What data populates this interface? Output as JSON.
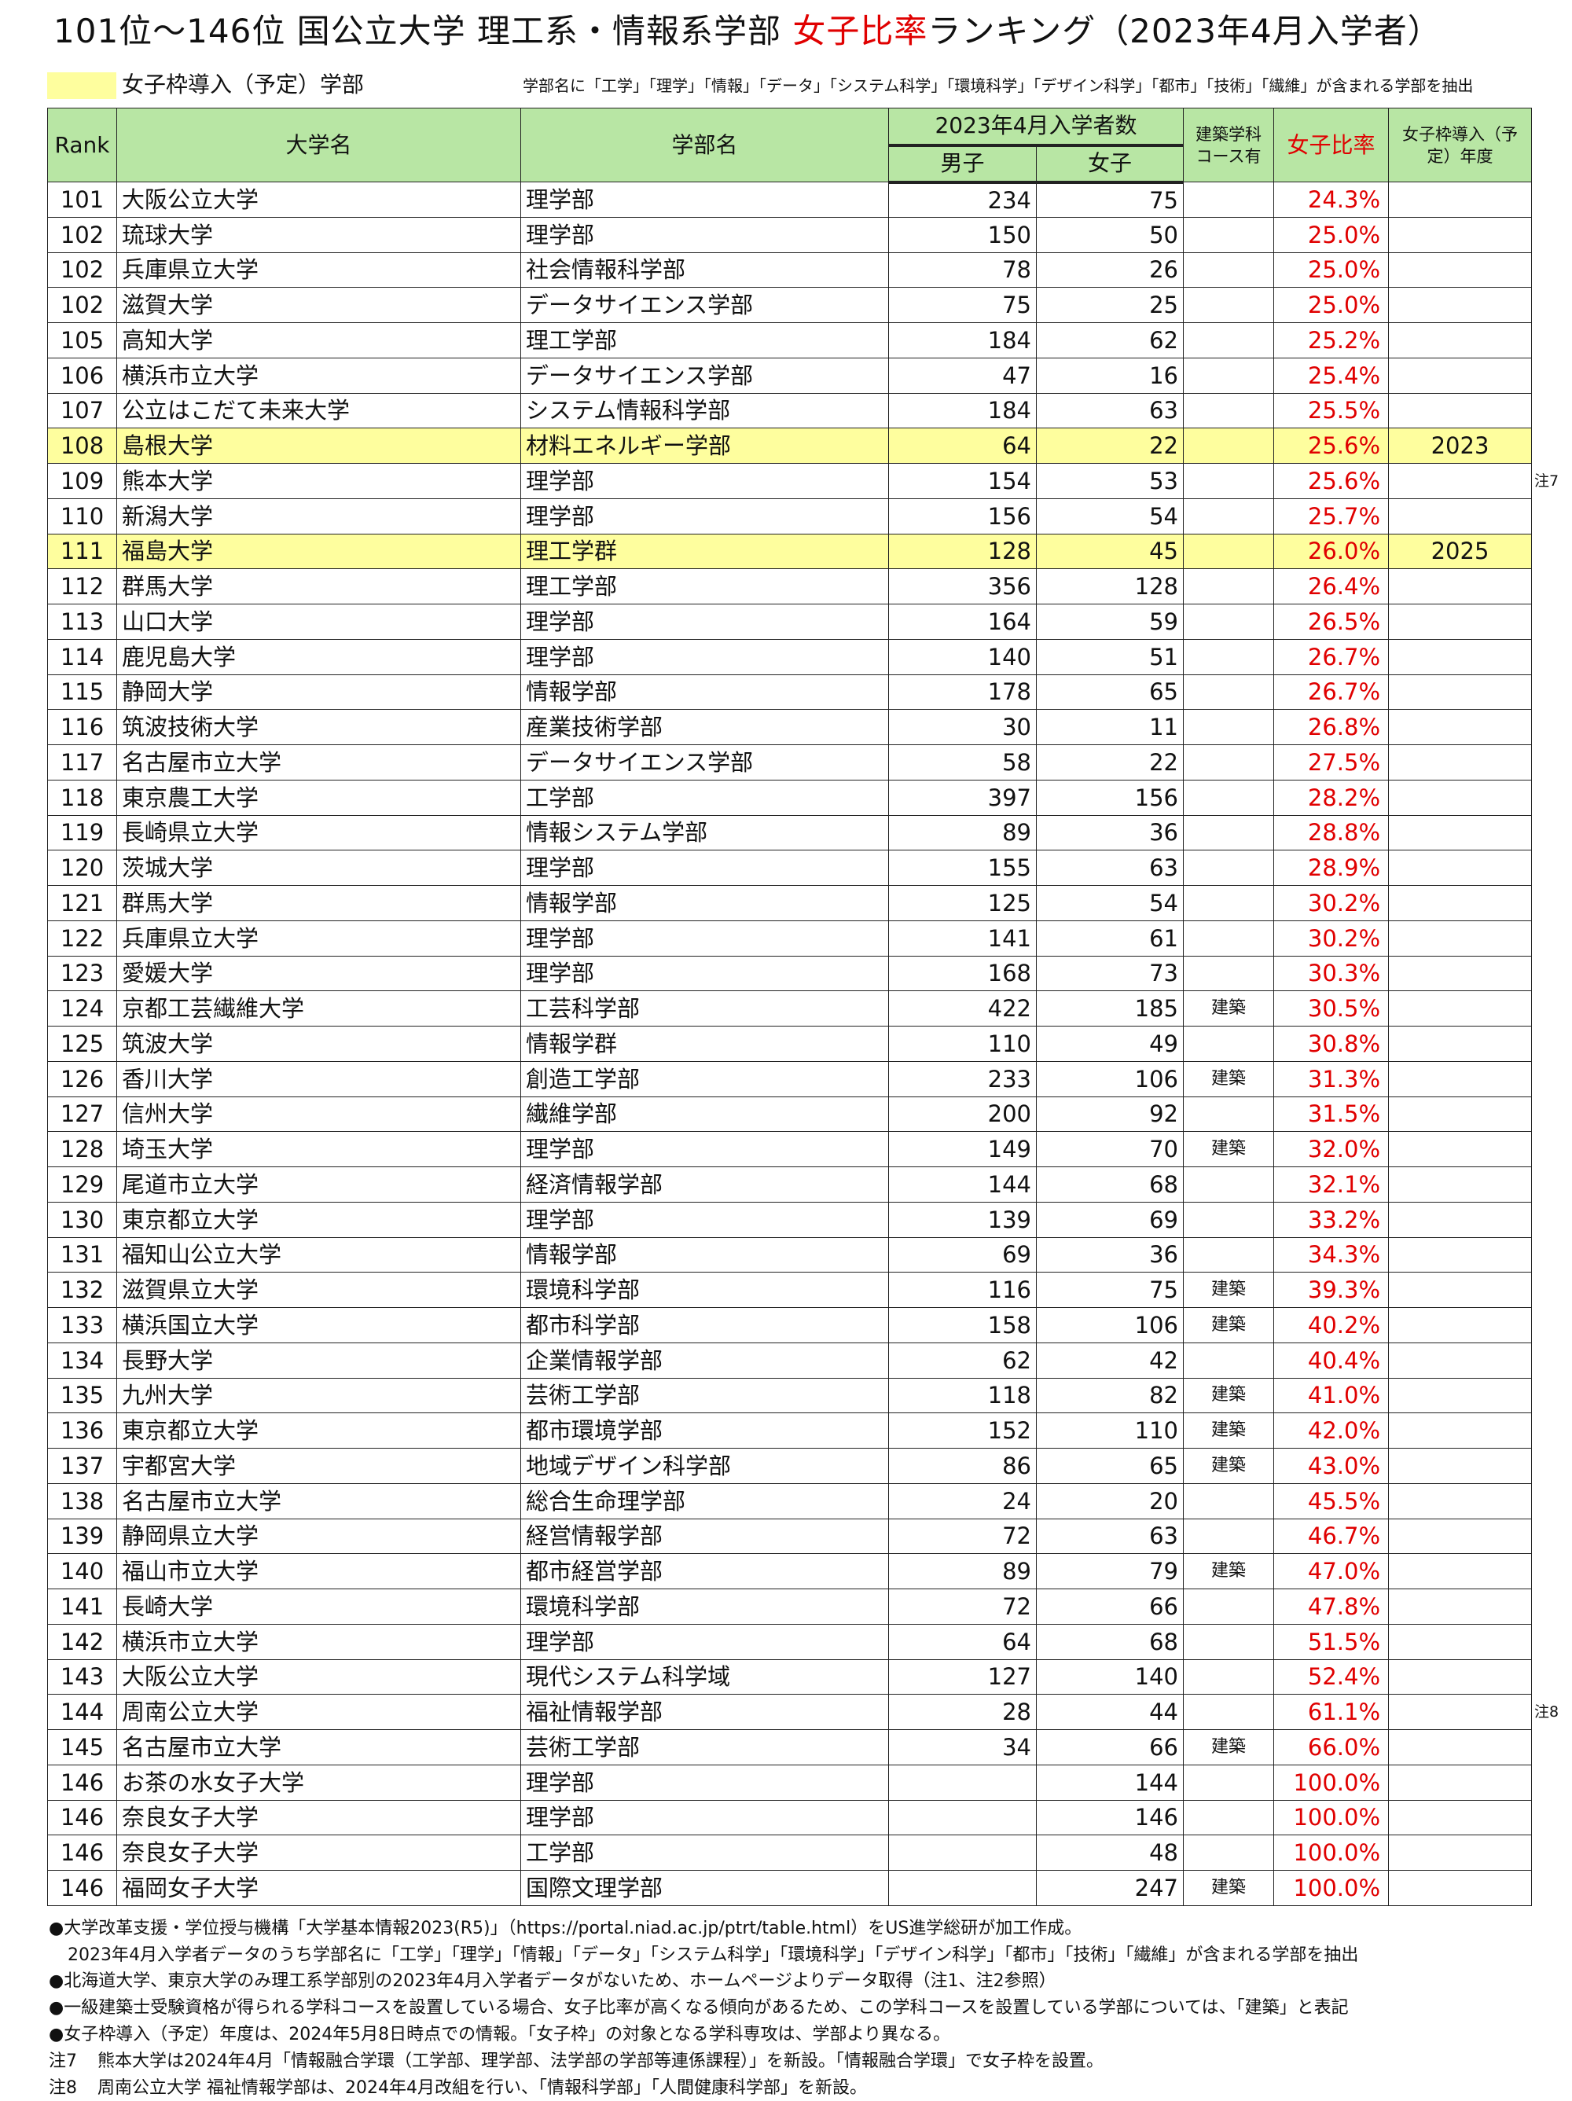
{
  "title": {
    "prefix": "101位～146位 国公立大学 理工系・情報系学部 ",
    "highlight": "女子比率",
    "suffix": "ランキング（2023年4月入学者）"
  },
  "legend": {
    "label": "女子枠導入（予定）学部",
    "highlight_color": "#fefe9e",
    "note": "学部名に「工学」「理学」「情報」「データ」「システム科学」「環境科学」「デザイン科学」「都市」「技術」「繊維」が含まれる学部を抽出"
  },
  "table": {
    "headers": {
      "rank": "Rank",
      "university": "大学名",
      "department": "学部名",
      "enrollment_group": "2023年4月入学者数",
      "male": "男子",
      "female": "女子",
      "architecture": "建築学科コース有",
      "ratio": "女子比率",
      "quota_year": "女子枠導入（予定）年度"
    },
    "header_color": "#b8e6a4",
    "ratio_color": "#e00000",
    "rows": [
      {
        "rank": "101",
        "university": "大阪公立大学",
        "department": "理学部",
        "male": "234",
        "female": "75",
        "architecture": "",
        "ratio": "24.3%",
        "quota_year": "",
        "highlight": false
      },
      {
        "rank": "102",
        "university": "琉球大学",
        "department": "理学部",
        "male": "150",
        "female": "50",
        "architecture": "",
        "ratio": "25.0%",
        "quota_year": "",
        "highlight": false
      },
      {
        "rank": "102",
        "university": "兵庫県立大学",
        "department": "社会情報科学部",
        "male": "78",
        "female": "26",
        "architecture": "",
        "ratio": "25.0%",
        "quota_year": "",
        "highlight": false
      },
      {
        "rank": "102",
        "university": "滋賀大学",
        "department": "データサイエンス学部",
        "male": "75",
        "female": "25",
        "architecture": "",
        "ratio": "25.0%",
        "quota_year": "",
        "highlight": false
      },
      {
        "rank": "105",
        "university": "高知大学",
        "department": "理工学部",
        "male": "184",
        "female": "62",
        "architecture": "",
        "ratio": "25.2%",
        "quota_year": "",
        "highlight": false
      },
      {
        "rank": "106",
        "university": "横浜市立大学",
        "department": "データサイエンス学部",
        "male": "47",
        "female": "16",
        "architecture": "",
        "ratio": "25.4%",
        "quota_year": "",
        "highlight": false
      },
      {
        "rank": "107",
        "university": "公立はこだて未来大学",
        "department": "システム情報科学部",
        "male": "184",
        "female": "63",
        "architecture": "",
        "ratio": "25.5%",
        "quota_year": "",
        "highlight": false
      },
      {
        "rank": "108",
        "university": "島根大学",
        "department": "材料エネルギー学部",
        "male": "64",
        "female": "22",
        "architecture": "",
        "ratio": "25.6%",
        "quota_year": "2023",
        "highlight": true
      },
      {
        "rank": "109",
        "university": "熊本大学",
        "department": "理学部",
        "male": "154",
        "female": "53",
        "architecture": "",
        "ratio": "25.6%",
        "quota_year": "",
        "highlight": false,
        "side_note": "注7"
      },
      {
        "rank": "110",
        "university": "新潟大学",
        "department": "理学部",
        "male": "156",
        "female": "54",
        "architecture": "",
        "ratio": "25.7%",
        "quota_year": "",
        "highlight": false
      },
      {
        "rank": "111",
        "university": "福島大学",
        "department": "理工学群",
        "male": "128",
        "female": "45",
        "architecture": "",
        "ratio": "26.0%",
        "quota_year": "2025",
        "highlight": true
      },
      {
        "rank": "112",
        "university": "群馬大学",
        "department": "理工学部",
        "male": "356",
        "female": "128",
        "architecture": "",
        "ratio": "26.4%",
        "quota_year": "",
        "highlight": false
      },
      {
        "rank": "113",
        "university": "山口大学",
        "department": "理学部",
        "male": "164",
        "female": "59",
        "architecture": "",
        "ratio": "26.5%",
        "quota_year": "",
        "highlight": false
      },
      {
        "rank": "114",
        "university": "鹿児島大学",
        "department": "理学部",
        "male": "140",
        "female": "51",
        "architecture": "",
        "ratio": "26.7%",
        "quota_year": "",
        "highlight": false
      },
      {
        "rank": "115",
        "university": "静岡大学",
        "department": "情報学部",
        "male": "178",
        "female": "65",
        "architecture": "",
        "ratio": "26.7%",
        "quota_year": "",
        "highlight": false
      },
      {
        "rank": "116",
        "university": "筑波技術大学",
        "department": "産業技術学部",
        "male": "30",
        "female": "11",
        "architecture": "",
        "ratio": "26.8%",
        "quota_year": "",
        "highlight": false
      },
      {
        "rank": "117",
        "university": "名古屋市立大学",
        "department": "データサイエンス学部",
        "male": "58",
        "female": "22",
        "architecture": "",
        "ratio": "27.5%",
        "quota_year": "",
        "highlight": false
      },
      {
        "rank": "118",
        "university": "東京農工大学",
        "department": "工学部",
        "male": "397",
        "female": "156",
        "architecture": "",
        "ratio": "28.2%",
        "quota_year": "",
        "highlight": false
      },
      {
        "rank": "119",
        "university": "長崎県立大学",
        "department": "情報システム学部",
        "male": "89",
        "female": "36",
        "architecture": "",
        "ratio": "28.8%",
        "quota_year": "",
        "highlight": false
      },
      {
        "rank": "120",
        "university": "茨城大学",
        "department": "理学部",
        "male": "155",
        "female": "63",
        "architecture": "",
        "ratio": "28.9%",
        "quota_year": "",
        "highlight": false
      },
      {
        "rank": "121",
        "university": "群馬大学",
        "department": "情報学部",
        "male": "125",
        "female": "54",
        "architecture": "",
        "ratio": "30.2%",
        "quota_year": "",
        "highlight": false
      },
      {
        "rank": "122",
        "university": "兵庫県立大学",
        "department": "理学部",
        "male": "141",
        "female": "61",
        "architecture": "",
        "ratio": "30.2%",
        "quota_year": "",
        "highlight": false
      },
      {
        "rank": "123",
        "university": "愛媛大学",
        "department": "理学部",
        "male": "168",
        "female": "73",
        "architecture": "",
        "ratio": "30.3%",
        "quota_year": "",
        "highlight": false
      },
      {
        "rank": "124",
        "university": "京都工芸繊維大学",
        "department": "工芸科学部",
        "male": "422",
        "female": "185",
        "architecture": "建築",
        "ratio": "30.5%",
        "quota_year": "",
        "highlight": false
      },
      {
        "rank": "125",
        "university": "筑波大学",
        "department": "情報学群",
        "male": "110",
        "female": "49",
        "architecture": "",
        "ratio": "30.8%",
        "quota_year": "",
        "highlight": false
      },
      {
        "rank": "126",
        "university": "香川大学",
        "department": "創造工学部",
        "male": "233",
        "female": "106",
        "architecture": "建築",
        "ratio": "31.3%",
        "quota_year": "",
        "highlight": false
      },
      {
        "rank": "127",
        "university": "信州大学",
        "department": "繊維学部",
        "male": "200",
        "female": "92",
        "architecture": "",
        "ratio": "31.5%",
        "quota_year": "",
        "highlight": false
      },
      {
        "rank": "128",
        "university": "埼玉大学",
        "department": "理学部",
        "male": "149",
        "female": "70",
        "architecture": "建築",
        "ratio": "32.0%",
        "quota_year": "",
        "highlight": false
      },
      {
        "rank": "129",
        "university": "尾道市立大学",
        "department": "経済情報学部",
        "male": "144",
        "female": "68",
        "architecture": "",
        "ratio": "32.1%",
        "quota_year": "",
        "highlight": false
      },
      {
        "rank": "130",
        "university": "東京都立大学",
        "department": "理学部",
        "male": "139",
        "female": "69",
        "architecture": "",
        "ratio": "33.2%",
        "quota_year": "",
        "highlight": false
      },
      {
        "rank": "131",
        "university": "福知山公立大学",
        "department": "情報学部",
        "male": "69",
        "female": "36",
        "architecture": "",
        "ratio": "34.3%",
        "quota_year": "",
        "highlight": false
      },
      {
        "rank": "132",
        "university": "滋賀県立大学",
        "department": "環境科学部",
        "male": "116",
        "female": "75",
        "architecture": "建築",
        "ratio": "39.3%",
        "quota_year": "",
        "highlight": false
      },
      {
        "rank": "133",
        "university": "横浜国立大学",
        "department": "都市科学部",
        "male": "158",
        "female": "106",
        "architecture": "建築",
        "ratio": "40.2%",
        "quota_year": "",
        "highlight": false
      },
      {
        "rank": "134",
        "university": "長野大学",
        "department": "企業情報学部",
        "male": "62",
        "female": "42",
        "architecture": "",
        "ratio": "40.4%",
        "quota_year": "",
        "highlight": false
      },
      {
        "rank": "135",
        "university": "九州大学",
        "department": "芸術工学部",
        "male": "118",
        "female": "82",
        "architecture": "建築",
        "ratio": "41.0%",
        "quota_year": "",
        "highlight": false
      },
      {
        "rank": "136",
        "university": "東京都立大学",
        "department": "都市環境学部",
        "male": "152",
        "female": "110",
        "architecture": "建築",
        "ratio": "42.0%",
        "quota_year": "",
        "highlight": false
      },
      {
        "rank": "137",
        "university": "宇都宮大学",
        "department": "地域デザイン科学部",
        "male": "86",
        "female": "65",
        "architecture": "建築",
        "ratio": "43.0%",
        "quota_year": "",
        "highlight": false
      },
      {
        "rank": "138",
        "university": "名古屋市立大学",
        "department": "総合生命理学部",
        "male": "24",
        "female": "20",
        "architecture": "",
        "ratio": "45.5%",
        "quota_year": "",
        "highlight": false
      },
      {
        "rank": "139",
        "university": "静岡県立大学",
        "department": "経営情報学部",
        "male": "72",
        "female": "63",
        "architecture": "",
        "ratio": "46.7%",
        "quota_year": "",
        "highlight": false
      },
      {
        "rank": "140",
        "university": "福山市立大学",
        "department": "都市経営学部",
        "male": "89",
        "female": "79",
        "architecture": "建築",
        "ratio": "47.0%",
        "quota_year": "",
        "highlight": false
      },
      {
        "rank": "141",
        "university": "長崎大学",
        "department": "環境科学部",
        "male": "72",
        "female": "66",
        "architecture": "",
        "ratio": "47.8%",
        "quota_year": "",
        "highlight": false
      },
      {
        "rank": "142",
        "university": "横浜市立大学",
        "department": "理学部",
        "male": "64",
        "female": "68",
        "architecture": "",
        "ratio": "51.5%",
        "quota_year": "",
        "highlight": false
      },
      {
        "rank": "143",
        "university": "大阪公立大学",
        "department": "現代システム科学域",
        "male": "127",
        "female": "140",
        "architecture": "",
        "ratio": "52.4%",
        "quota_year": "",
        "highlight": false
      },
      {
        "rank": "144",
        "university": "周南公立大学",
        "department": "福祉情報学部",
        "male": "28",
        "female": "44",
        "architecture": "",
        "ratio": "61.1%",
        "quota_year": "",
        "highlight": false,
        "side_note": "注8"
      },
      {
        "rank": "145",
        "university": "名古屋市立大学",
        "department": "芸術工学部",
        "male": "34",
        "female": "66",
        "architecture": "建築",
        "ratio": "66.0%",
        "quota_year": "",
        "highlight": false
      },
      {
        "rank": "146",
        "university": "お茶の水女子大学",
        "department": "理学部",
        "male": "",
        "female": "144",
        "architecture": "",
        "ratio": "100.0%",
        "quota_year": "",
        "highlight": false
      },
      {
        "rank": "146",
        "university": "奈良女子大学",
        "department": "理学部",
        "male": "",
        "female": "146",
        "architecture": "",
        "ratio": "100.0%",
        "quota_year": "",
        "highlight": false
      },
      {
        "rank": "146",
        "university": "奈良女子大学",
        "department": "工学部",
        "male": "",
        "female": "48",
        "architecture": "",
        "ratio": "100.0%",
        "quota_year": "",
        "highlight": false
      },
      {
        "rank": "146",
        "university": "福岡女子大学",
        "department": "国際文理学部",
        "male": "",
        "female": "247",
        "architecture": "建築",
        "ratio": "100.0%",
        "quota_year": "",
        "highlight": false
      }
    ]
  },
  "footer": {
    "lines": [
      "●大学改革支援・学位授与機構「大学基本情報2023(R5)」（https://portal.niad.ac.jp/ptrt/table.html）をUS進学総研が加工作成。",
      "2023年4月入学者データのうち学部名に「工学」「理学」「情報」「データ」「システム科学」「環境科学」「デザイン科学」「都市」「技術」「繊維」が含まれる学部を抽出",
      "●北海道大学、東京大学のみ理工系学部別の2023年4月入学者データがないため、ホームページよりデータ取得（注1、注2参照）",
      "●一級建築士受験資格が得られる学科コースを設置している場合、女子比率が高くなる傾向があるため、この学科コースを設置している学部については、「建築」と表記",
      "●女子枠導入（予定）年度は、2024年5月8日時点での情報。「女子枠」の対象となる学科専攻は、学部より異なる。"
    ],
    "notes": [
      {
        "label": "注7",
        "text": "熊本大学は2024年4月「情報融合学環（工学部、理学部、法学部の学部等連係課程）」を新設。「情報融合学環」で女子枠を設置。"
      },
      {
        "label": "注8",
        "text": "周南公立大学 福祉情報学部は、2024年4月改組を行い、「情報科学部」「人間健康科学部」を新設。"
      }
    ]
  }
}
